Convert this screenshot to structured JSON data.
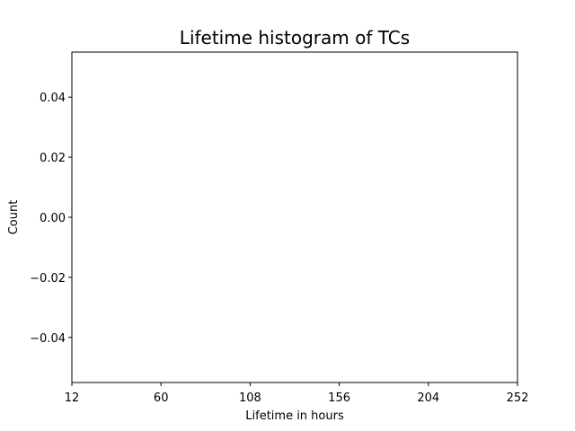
{
  "chart_data": {
    "type": "bar",
    "title": "Lifetime histogram of TCs",
    "xlabel": "Lifetime in hours",
    "ylabel": "Count",
    "xlim": [
      12,
      252
    ],
    "ylim": [
      -0.055,
      0.055
    ],
    "x_ticks": [
      12,
      60,
      108,
      156,
      204,
      252
    ],
    "y_ticks": [
      -0.04,
      -0.02,
      0.0,
      0.02,
      0.04
    ],
    "y_tick_labels": [
      "−0.04",
      "−0.02",
      "0.00",
      "0.02",
      "0.04"
    ],
    "bins": [],
    "counts": [],
    "grid": false,
    "legend": "none"
  }
}
